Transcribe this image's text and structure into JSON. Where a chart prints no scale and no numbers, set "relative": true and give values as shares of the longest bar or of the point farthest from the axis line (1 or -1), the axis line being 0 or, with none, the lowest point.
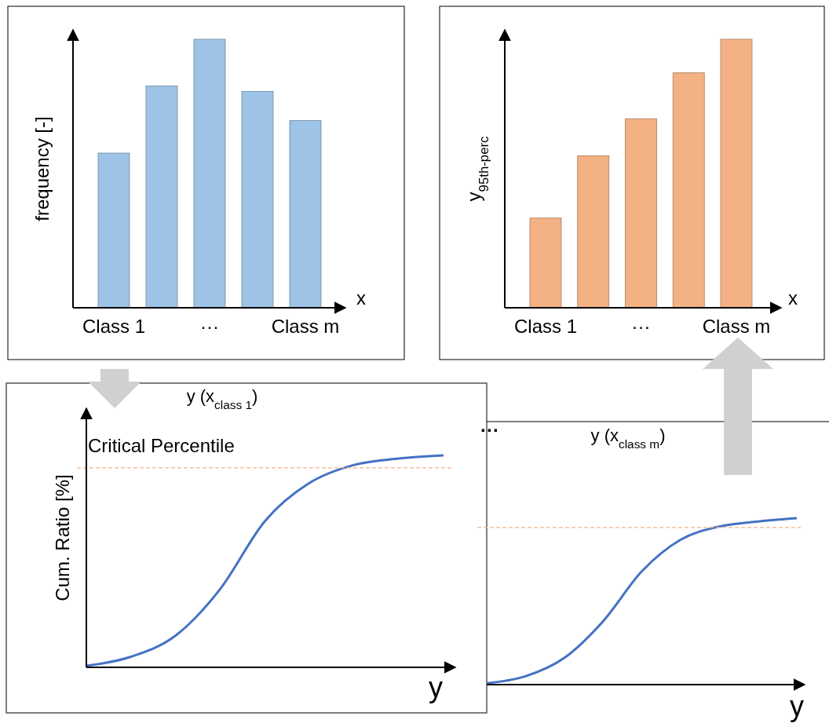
{
  "chart_data": [
    {
      "type": "bar",
      "relative": true,
      "categories": [
        "Class 1",
        null,
        "···",
        null,
        "Class m"
      ],
      "values": [
        0.576,
        0.826,
        1,
        0.806,
        0.697
      ],
      "color": "#9dc3e6",
      "ylabel": "frequency [-]",
      "xlabel": "x"
    },
    {
      "type": "bar",
      "relative": true,
      "categories": [
        "Class 1",
        null,
        "···",
        null,
        "Class m"
      ],
      "values": [
        0.334,
        0.566,
        0.704,
        0.875,
        1
      ],
      "color": "#f4b183",
      "ylabel": "y$_{95th-perc}$",
      "xlabel": "x"
    },
    {
      "type": "line",
      "relative": true,
      "title": "y (x$_{class 1}$)",
      "categories": [
        null,
        null,
        null,
        null,
        null,
        null,
        null,
        null,
        null
      ],
      "values": [
        0.007,
        0.05,
        0.15,
        0.37,
        0.69,
        0.87,
        0.955,
        0.985,
        1
      ],
      "color": "#4472c4",
      "ylabel": "Cum. Ratio [%]",
      "xlabel": "y",
      "annotations": [
        "Critical Percentile"
      ],
      "ref_lines": [
        {
          "axis": "y",
          "value": 0.941,
          "color": "#f4b183",
          "line_style": "dashed"
        }
      ]
    },
    {
      "type": "line",
      "relative": true,
      "title": "y (x$_{class m}$)",
      "categories": [
        null,
        null,
        null,
        null,
        null,
        null,
        null,
        null,
        null
      ],
      "values": [
        0.008,
        0.05,
        0.16,
        0.38,
        0.68,
        0.87,
        0.95,
        0.98,
        1
      ],
      "color": "#4472c4",
      "xlabel": "y",
      "annotations": [
        "···"
      ],
      "ref_lines": [
        {
          "axis": "y",
          "value": 0.944,
          "color": "#f4b183",
          "line_style": "dashed"
        }
      ]
    }
  ]
}
